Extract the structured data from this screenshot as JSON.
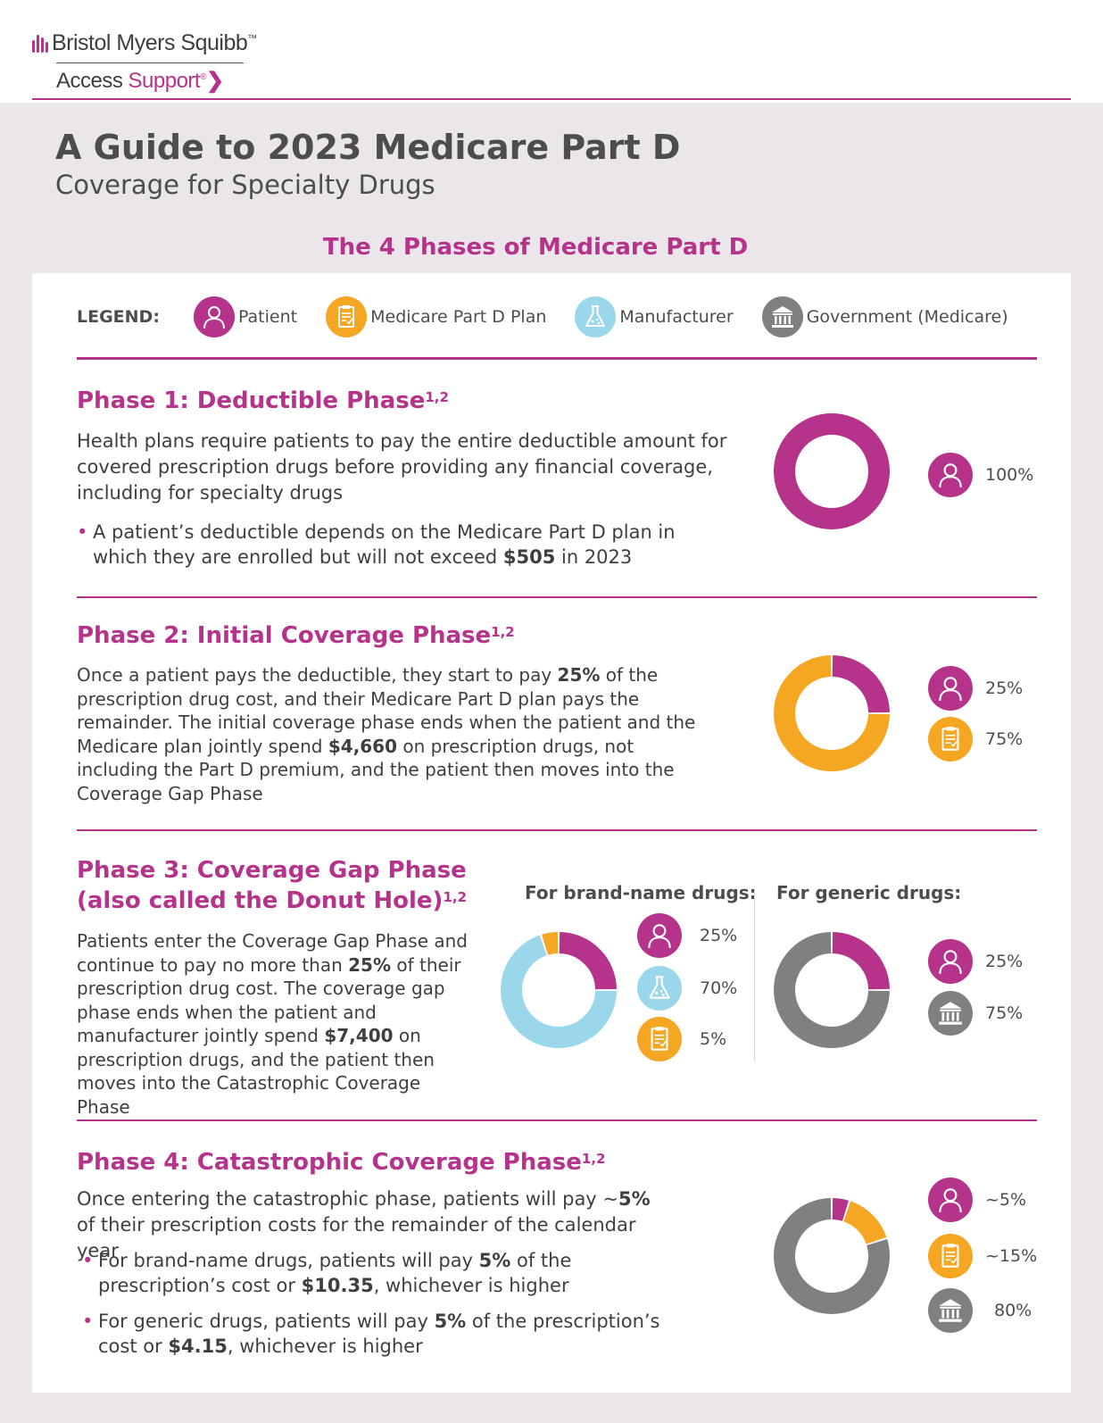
{
  "header": {
    "brand": "Bristol Myers Squibb",
    "brand_tm": "™",
    "access": "Access",
    "support": "Support",
    "support_reg": "®"
  },
  "title": "A Guide to 2023 Medicare Part D",
  "subtitle": "Coverage for Specialty Drugs",
  "section_title": "The 4 Phases of Medicare Part D",
  "legend": {
    "label": "LEGEND:",
    "items": [
      {
        "icon": "patient-icon",
        "label": "Patient",
        "color": "#b5338a"
      },
      {
        "icon": "plan-document-icon",
        "label": "Medicare Part D Plan",
        "color": "#f5a623"
      },
      {
        "icon": "flask-icon",
        "label": "Manufacturer",
        "color": "#9ad7eb"
      },
      {
        "icon": "government-building-icon",
        "label": "Government (Medicare)",
        "color": "#808080"
      }
    ]
  },
  "colors": {
    "patient": "#b5338a",
    "plan": "#f5a623",
    "manufacturer": "#9ad7eb",
    "government": "#808080"
  },
  "phase1": {
    "title": "Phase 1:  Deductible Phase",
    "sup": "1,2",
    "body": "Health plans require patients to pay the entire deductible amount for covered prescription drugs before providing any financial coverage, including for specialty drugs",
    "bullet_before": "A patient’s deductible depends on the Medicare Part D plan in which they are enrolled but will not exceed ",
    "bullet_bold": "$505",
    "bullet_after": " in 2023",
    "shares": [
      {
        "payer": "patient",
        "value": 100,
        "label": "100%"
      }
    ]
  },
  "phase2": {
    "title": "Phase 2:  Initial Coverage Phase",
    "sup": "1,2",
    "body_1": "Once a patient pays the deductible, they start to pay ",
    "body_b1": "25%",
    "body_2": " of the prescription drug cost, and their Medicare Part D plan pays the remainder. The initial coverage phase ends when the patient and the Medicare plan jointly spend ",
    "body_b2": "$4,660",
    "body_3": " on prescription drugs, not including the Part D premium, and the patient then moves into the Coverage Gap Phase",
    "shares": [
      {
        "payer": "patient",
        "value": 25,
        "label": "25%"
      },
      {
        "payer": "plan",
        "value": 75,
        "label": "75%"
      }
    ]
  },
  "phase3": {
    "title_line1": "Phase 3:  Coverage Gap Phase",
    "title_line2": "(also called the Donut Hole)",
    "sup": "1,2",
    "body_1": "Patients enter the Coverage Gap Phase and continue to pay no more than ",
    "body_b1": "25%",
    "body_2": " of their prescription drug cost. The coverage gap phase ends when the patient and manufacturer jointly spend ",
    "body_b2": "$7,400",
    "body_3": " on prescription drugs, and the patient then moves into the Catastrophic Coverage Phase",
    "brand_head": "For brand-name drugs:",
    "generic_head": "For generic drugs:",
    "brand_shares": [
      {
        "payer": "patient",
        "value": 25,
        "label": "25%"
      },
      {
        "payer": "manufacturer",
        "value": 70,
        "label": "70%"
      },
      {
        "payer": "plan",
        "value": 5,
        "label": "5%"
      }
    ],
    "generic_shares": [
      {
        "payer": "patient",
        "value": 25,
        "label": "25%"
      },
      {
        "payer": "government",
        "value": 75,
        "label": "75%"
      }
    ]
  },
  "phase4": {
    "title": "Phase 4:  Catastrophic Coverage Phase",
    "sup": "1,2",
    "body_1": "Once entering the catastrophic phase, patients will pay ~",
    "body_b1": "5%",
    "body_2": " of their prescription costs for the remainder of the calendar year",
    "b1_1": "For brand-name drugs, patients will pay ",
    "b1_b1": "5%",
    "b1_2": " of the prescription’s cost or ",
    "b1_b2": "$10.35",
    "b1_3": ", whichever is higher",
    "b2_1": "For generic drugs, patients will pay ",
    "b2_b1": "5%",
    "b2_2": " of the prescription’s cost or ",
    "b2_b2": "$4.15",
    "b2_3": ", whichever is higher",
    "shares": [
      {
        "payer": "patient",
        "value": 5,
        "label": "~5%"
      },
      {
        "payer": "plan",
        "value": 15,
        "label": "~15%"
      },
      {
        "payer": "government",
        "value": 80,
        "label": "80%"
      }
    ]
  }
}
